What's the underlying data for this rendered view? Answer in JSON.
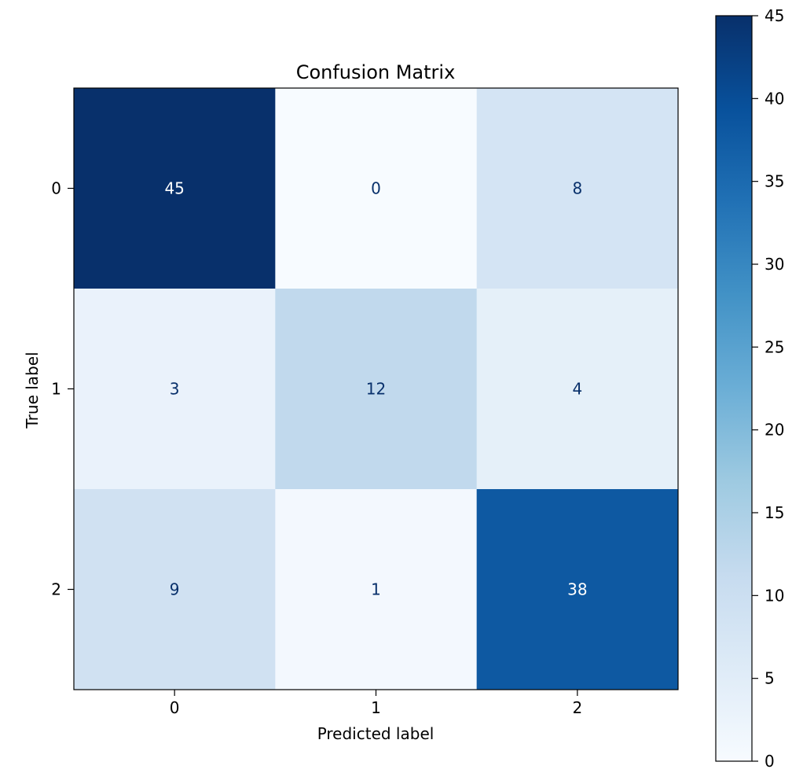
{
  "chart_data": {
    "type": "heatmap",
    "title": "Confusion Matrix",
    "xlabel": "Predicted label",
    "ylabel": "True label",
    "x_categories": [
      "0",
      "1",
      "2"
    ],
    "y_categories": [
      "0",
      "1",
      "2"
    ],
    "matrix": [
      [
        45,
        0,
        8
      ],
      [
        3,
        12,
        4
      ],
      [
        9,
        1,
        38
      ]
    ],
    "colormap": "Blues",
    "colorbar": {
      "range": [
        0,
        45
      ],
      "ticks": [
        0,
        5,
        10,
        15,
        20,
        25,
        30,
        35,
        40,
        45
      ]
    }
  },
  "colors": {
    "cmap_stops": [
      "#f7fbff",
      "#deebf7",
      "#c6dbef",
      "#9ecae1",
      "#6baed6",
      "#4292c6",
      "#2171b5",
      "#08519c",
      "#08306b"
    ],
    "text_light": "#ffffff",
    "text_dark": "#08306b",
    "axis": "#000000"
  }
}
